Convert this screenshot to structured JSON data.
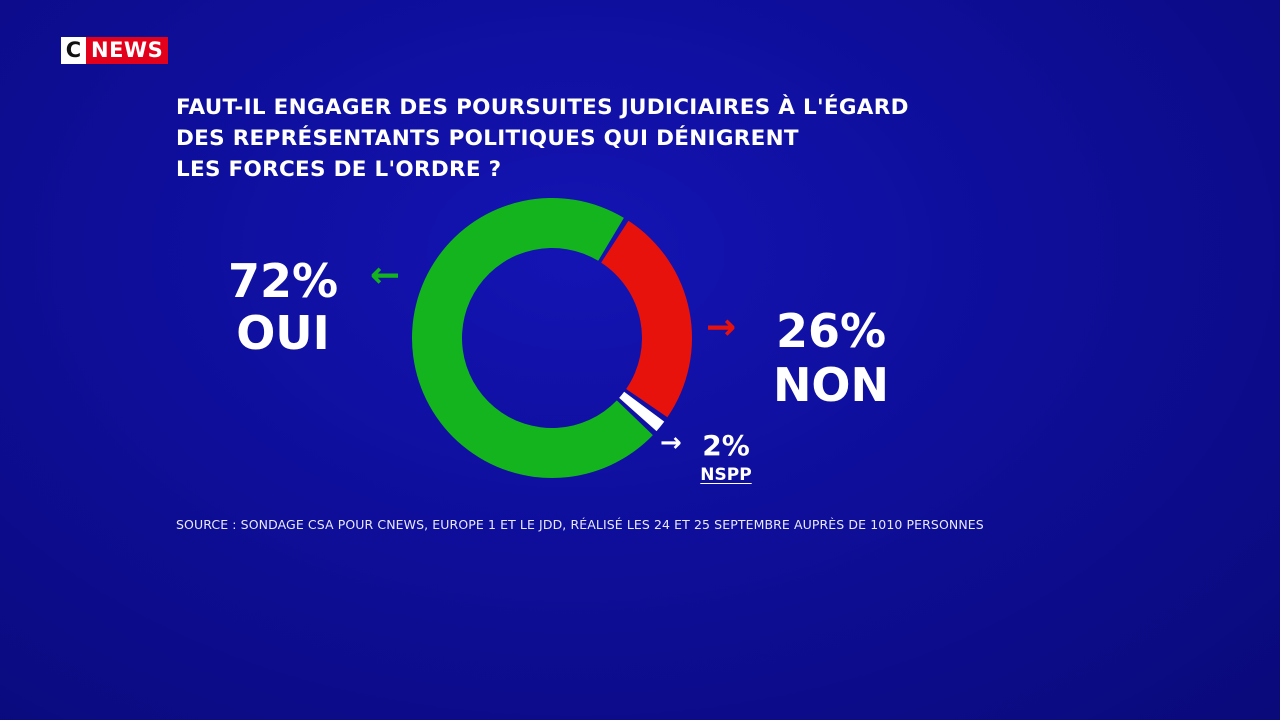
{
  "logo": {
    "c": "C",
    "news": "NEWS"
  },
  "chart_data": {
    "type": "pie",
    "title_lines": [
      "FAUT-IL ENGAGER DES POURSUITES JUDICIAIRES À L'ÉGARD",
      "DES REPRÉSENTANTS POLITIQUES QUI DÉNIGRENT",
      "LES FORCES DE L'ORDRE ?"
    ],
    "slices": [
      {
        "label": "NON",
        "value": 26,
        "value_label": "26%",
        "color": "#e8120c"
      },
      {
        "label": "NSPP",
        "value": 2,
        "value_label": "2%",
        "color": "#ffffff"
      },
      {
        "label": "OUI",
        "value": 72,
        "value_label": "72%",
        "color": "#14b41e"
      }
    ],
    "donut": true,
    "source": "SOURCE : SONDAGE CSA POUR CNEWS, EUROPE 1 ET LE JDD, RÉALISÉ LES 24 ET 25 SEPTEMBRE AUPRÈS DE 1010 PERSONNES"
  },
  "icons": {
    "arrow_left": "arrow-left-icon",
    "arrow_right": "arrow-right-icon"
  }
}
